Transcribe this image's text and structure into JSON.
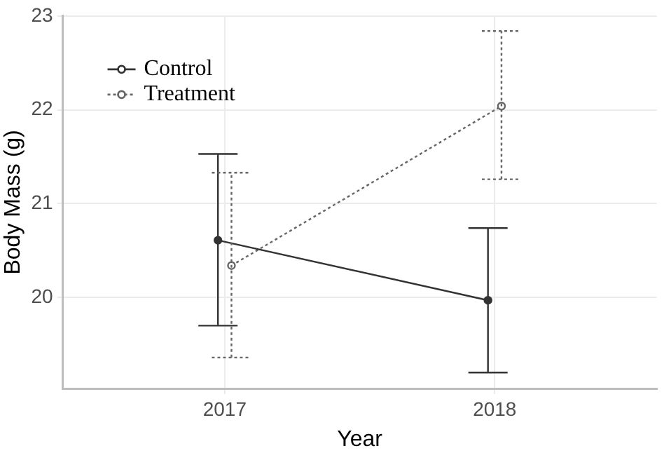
{
  "chart_data": {
    "type": "line",
    "xlabel": "Year",
    "ylabel": "Body Mass (g)",
    "categories": [
      "2017",
      "2018"
    ],
    "series": [
      {
        "name": "Control",
        "color": "#333333",
        "values": [
          20.61,
          19.97
        ],
        "errors": [
          [
            19.7,
            21.53
          ],
          [
            19.2,
            20.74
          ]
        ],
        "line_style": "solid"
      },
      {
        "name": "Treatment",
        "color": "#666666",
        "values": [
          20.34,
          22.04
        ],
        "errors": [
          [
            19.36,
            21.33
          ],
          [
            21.26,
            22.84
          ]
        ],
        "line_style": "dotted"
      }
    ],
    "ylim": [
      19.03,
      23
    ],
    "yticks": [
      20,
      21,
      22,
      23
    ],
    "grid": true,
    "legend": "top left",
    "marker": "circle"
  }
}
